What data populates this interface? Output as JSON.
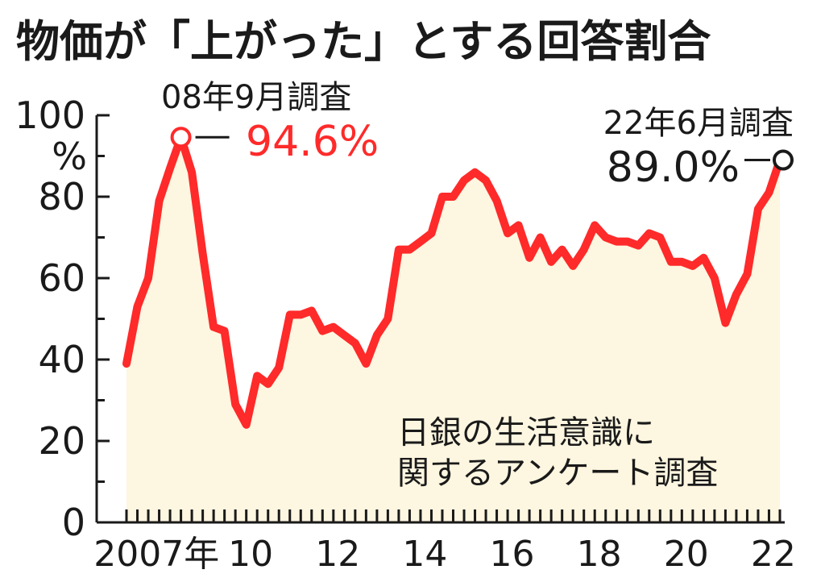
{
  "chart_data": {
    "type": "line",
    "title": "物価が「上がった」とする回答割合",
    "ylabel": "%",
    "ylim": [
      0,
      100
    ],
    "y_ticks": [
      "0",
      "20",
      "40",
      "60",
      "80",
      "100"
    ],
    "x_tick_labels": [
      "2007年",
      "10",
      "12",
      "14",
      "16",
      "18",
      "20",
      "22"
    ],
    "x_tick_years": [
      2007.3,
      2010.2,
      2012.2,
      2014.2,
      2016.2,
      2018.2,
      2020.2,
      2022.2
    ],
    "x_range": [
      2007.0,
      2022.5
    ],
    "line_color": "#ff2a2a",
    "fill_color": "#fdf6e0",
    "series": [
      {
        "name": "",
        "x": [
          2007.25,
          2007.5,
          2007.75,
          2008.0,
          2008.25,
          2008.5,
          2008.75,
          2009.0,
          2009.25,
          2009.5,
          2009.75,
          2010.0,
          2010.25,
          2010.5,
          2010.75,
          2011.0,
          2011.25,
          2011.5,
          2011.75,
          2012.0,
          2012.25,
          2012.5,
          2012.75,
          2013.0,
          2013.25,
          2013.5,
          2013.75,
          2014.0,
          2014.25,
          2014.5,
          2014.75,
          2015.0,
          2015.25,
          2015.5,
          2015.75,
          2016.0,
          2016.25,
          2016.5,
          2016.75,
          2017.0,
          2017.25,
          2017.5,
          2017.75,
          2018.0,
          2018.25,
          2018.5,
          2018.75,
          2019.0,
          2019.25,
          2019.5,
          2019.75,
          2020.0,
          2020.25,
          2020.5,
          2020.75,
          2021.0,
          2021.25,
          2021.5,
          2021.75,
          2022.0,
          2022.25
        ],
        "values": [
          39,
          53,
          60,
          79,
          87,
          94.6,
          86,
          66,
          48,
          47,
          29,
          24,
          36,
          34,
          38,
          51,
          51,
          52,
          47,
          48,
          46,
          44,
          39,
          46,
          50,
          67,
          67,
          69,
          71,
          80,
          80,
          84,
          86,
          84,
          79,
          71,
          73,
          65,
          70,
          64,
          67,
          63,
          67,
          73,
          70,
          69,
          69,
          68,
          71,
          70,
          64,
          64,
          63,
          65,
          60,
          49,
          56,
          61,
          77,
          81,
          89.0
        ]
      }
    ],
    "annotations": [
      {
        "label": "08年9月調査",
        "value": "94.6%",
        "x": 2008.5,
        "y": 94.6,
        "color": "#ff2a2a"
      },
      {
        "label": "22年6月調査",
        "value": "89.0%",
        "x": 2022.25,
        "y": 89.0,
        "color": "#1a1a1a"
      }
    ],
    "source_lines": [
      "日銀の生活意識に",
      "関するアンケート調査"
    ]
  }
}
